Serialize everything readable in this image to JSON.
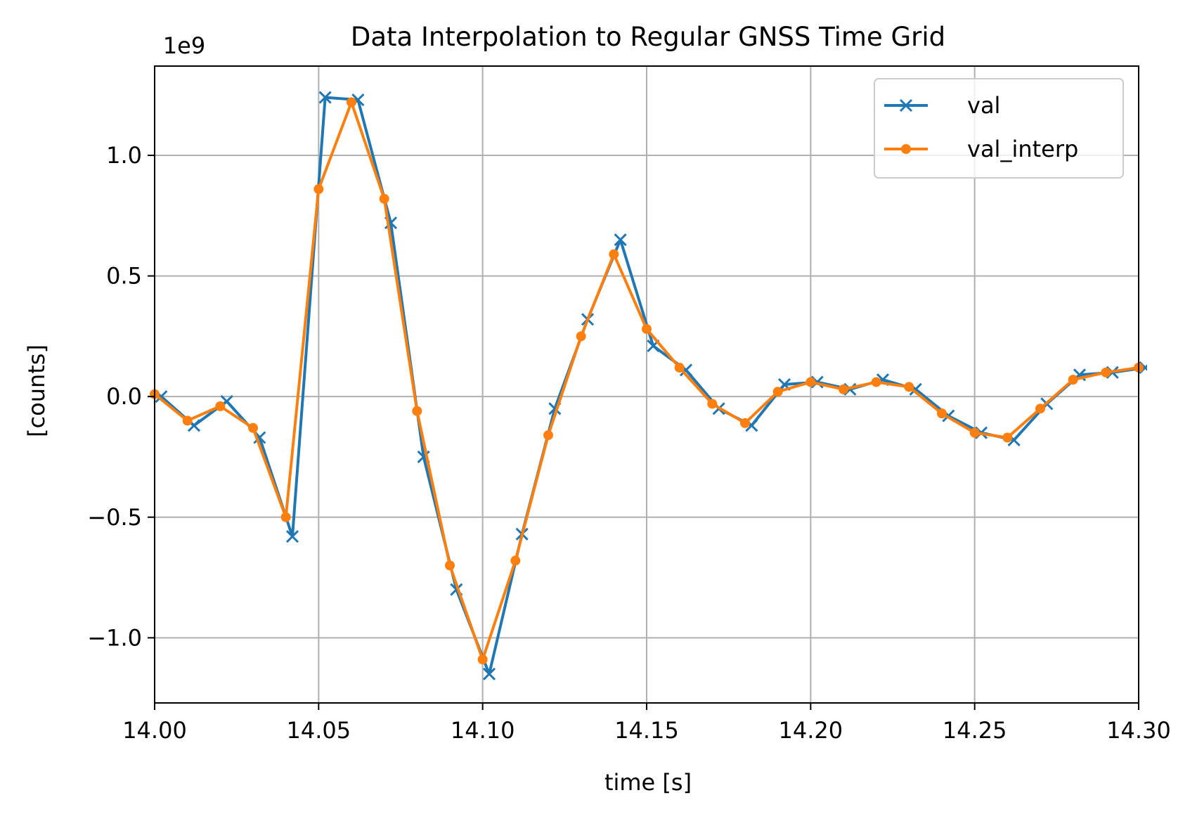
{
  "chart_data": {
    "type": "line",
    "title": "Data Interpolation to Regular GNSS Time Grid",
    "xlabel": "time [s]",
    "ylabel": "[counts]",
    "y_scale_label": "1e9",
    "xlim": [
      14.0,
      14.3
    ],
    "ylim": [
      -1.27,
      1.37
    ],
    "xticks": [
      14.0,
      14.05,
      14.1,
      14.15,
      14.2,
      14.25,
      14.3
    ],
    "xtick_labels": [
      "14.00",
      "14.05",
      "14.10",
      "14.15",
      "14.20",
      "14.25",
      "14.30"
    ],
    "yticks": [
      -1.0,
      -0.5,
      0.0,
      0.5,
      1.0
    ],
    "ytick_labels": [
      "−1.0",
      "−0.5",
      "0.0",
      "0.5",
      "1.0"
    ],
    "grid": true,
    "legend_position": "top-right",
    "series": [
      {
        "name": "val",
        "color": "#1f77b4",
        "marker": "x",
        "x": [
          14.002,
          14.012,
          14.022,
          14.032,
          14.042,
          14.052,
          14.062,
          14.072,
          14.082,
          14.092,
          14.102,
          14.112,
          14.122,
          14.132,
          14.142,
          14.152,
          14.162,
          14.172,
          14.182,
          14.192,
          14.202,
          14.212,
          14.222,
          14.232,
          14.242,
          14.252,
          14.262,
          14.272,
          14.282,
          14.292,
          14.302
        ],
        "y": [
          0.0,
          -0.12,
          -0.02,
          -0.17,
          -0.58,
          1.24,
          1.23,
          0.72,
          -0.25,
          -0.8,
          -1.15,
          -0.57,
          -0.05,
          0.32,
          0.65,
          0.21,
          0.11,
          -0.05,
          -0.12,
          0.05,
          0.06,
          0.03,
          0.07,
          0.03,
          -0.08,
          -0.15,
          -0.18,
          -0.03,
          0.09,
          0.1,
          0.12
        ]
      },
      {
        "name": "val_interp",
        "color": "#ff7f0e",
        "marker": "o",
        "x": [
          14.0,
          14.01,
          14.02,
          14.03,
          14.04,
          14.05,
          14.06,
          14.07,
          14.08,
          14.09,
          14.1,
          14.11,
          14.12,
          14.13,
          14.14,
          14.15,
          14.16,
          14.17,
          14.18,
          14.19,
          14.2,
          14.21,
          14.22,
          14.23,
          14.24,
          14.25,
          14.26,
          14.27,
          14.28,
          14.29,
          14.3
        ],
        "y": [
          0.01,
          -0.1,
          -0.04,
          -0.13,
          -0.5,
          0.86,
          1.22,
          0.82,
          -0.06,
          -0.7,
          -1.09,
          -0.68,
          -0.16,
          0.25,
          0.59,
          0.28,
          0.12,
          -0.03,
          -0.11,
          0.02,
          0.06,
          0.03,
          0.06,
          0.04,
          -0.07,
          -0.15,
          -0.17,
          -0.05,
          0.07,
          0.1,
          0.12
        ]
      }
    ]
  }
}
